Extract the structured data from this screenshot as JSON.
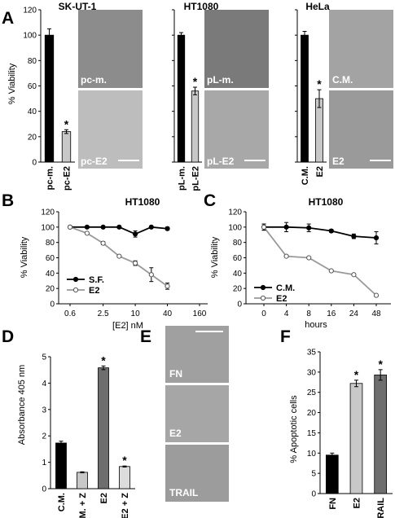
{
  "panel_labels": {
    "A": "A",
    "B": "B",
    "C": "C",
    "D": "D",
    "E": "E",
    "F": "F"
  },
  "panelA": {
    "y_axis_label": "% Viability",
    "y_ticks": [
      "0",
      "20",
      "40",
      "60",
      "80",
      "100",
      "120"
    ],
    "groups": [
      {
        "title": "SK-UT-1",
        "photo_top_label": "pc-m.",
        "photo_bottom_label": "pc-E2",
        "photo_top_tone": "#8c8c8c",
        "photo_bottom_tone": "#bdbdbd"
      },
      {
        "title": "HT1080",
        "photo_top_label": "pL-m.",
        "photo_bottom_label": "pL-E2",
        "photo_top_tone": "#7a7a7a",
        "photo_bottom_tone": "#a8a8a8"
      },
      {
        "title": "HeLa",
        "photo_top_label": "C.M.",
        "photo_bottom_label": "E2",
        "photo_top_tone": "#a3a3a3",
        "photo_bottom_tone": "#9a9a9a"
      }
    ]
  },
  "panelB": {
    "title": "HT1080",
    "legend": [
      "S.F.",
      "E2"
    ]
  },
  "panelC": {
    "title": "HT1080",
    "legend": [
      "C.M.",
      "E2"
    ]
  },
  "panelD": {
    "legend": []
  },
  "panelE": {
    "photo_labels": [
      "FN",
      "E2",
      "TRAIL"
    ],
    "photo_tones": [
      "#a0a0a0",
      "#a6a6a6",
      "#9c9c9c"
    ]
  },
  "panelF": {
    "legend": []
  },
  "colors": {
    "black": "#000000",
    "light_gray": "#c8c8c8",
    "dark_gray": "#6e6e6e",
    "line_gray": "#9a9a9a"
  },
  "chart_data": [
    {
      "type": "bar",
      "title": "SK-UT-1",
      "ylabel": "% Viability",
      "ylim": [
        0,
        120
      ],
      "categories": [
        "pc-m.",
        "pc-E2"
      ],
      "values": [
        100,
        24
      ],
      "errors": [
        5,
        1.5
      ],
      "significance": [
        "",
        "*"
      ],
      "colors": [
        "#000000",
        "#c8c8c8"
      ]
    },
    {
      "type": "bar",
      "title": "HT1080",
      "ylabel": "",
      "ylim": [
        0,
        120
      ],
      "categories": [
        "pL-m.",
        "pL-E2"
      ],
      "values": [
        100,
        56
      ],
      "errors": [
        2,
        3
      ],
      "significance": [
        "",
        "*"
      ],
      "colors": [
        "#000000",
        "#c8c8c8"
      ]
    },
    {
      "type": "bar",
      "title": "HeLa",
      "ylabel": "",
      "ylim": [
        0,
        120
      ],
      "categories": [
        "C.M.",
        "E2"
      ],
      "values": [
        100,
        50
      ],
      "errors": [
        3,
        7
      ],
      "significance": [
        "",
        "*"
      ],
      "colors": [
        "#000000",
        "#c8c8c8"
      ]
    },
    {
      "type": "line",
      "title": "HT1080",
      "xlabel": "[E2] nM",
      "ylabel": "% Viability",
      "xscale": "log2",
      "x": [
        0.6,
        1.25,
        2.5,
        5,
        10,
        20,
        40
      ],
      "xtick_labels": [
        "0.6",
        "2.5",
        "10",
        "40",
        "160"
      ],
      "xtick_values": [
        0.6,
        2.5,
        10,
        40,
        160
      ],
      "ylim": [
        0,
        120
      ],
      "yticks": [
        0,
        20,
        40,
        60,
        80,
        100,
        120
      ],
      "legend_position": "bottom-left",
      "series": [
        {
          "name": "S.F.",
          "marker": "filled-circle",
          "color": "#000000",
          "values": [
            100,
            100,
            100,
            100,
            91,
            100,
            98
          ],
          "errors": [
            0,
            0,
            0,
            0,
            4,
            0,
            2
          ]
        },
        {
          "name": "E2",
          "marker": "open-circle",
          "color": "#9a9a9a",
          "values": [
            100,
            92,
            79,
            62,
            53,
            38,
            23
          ],
          "errors": [
            0,
            0,
            2,
            0,
            3,
            9,
            4
          ]
        }
      ]
    },
    {
      "type": "line",
      "title": "HT1080",
      "xlabel": "hours",
      "ylabel": "% Viability",
      "xscale": "categorical",
      "x": [
        0,
        4,
        8,
        16,
        24,
        48
      ],
      "ylim": [
        0,
        120
      ],
      "yticks": [
        0,
        20,
        40,
        60,
        80,
        100,
        120
      ],
      "legend_position": "bottom-left",
      "series": [
        {
          "name": "C.M.",
          "marker": "filled-circle",
          "color": "#000000",
          "values": [
            100,
            100,
            99,
            95,
            88,
            86
          ],
          "errors": [
            4,
            6,
            5,
            2,
            3,
            8
          ]
        },
        {
          "name": "E2",
          "marker": "open-circle",
          "color": "#9a9a9a",
          "values": [
            100,
            62,
            60,
            43,
            38,
            11
          ],
          "errors": [
            4,
            1,
            1,
            1,
            1,
            1
          ]
        }
      ]
    },
    {
      "type": "bar",
      "title": "",
      "ylabel": "Absorbance 405 nm",
      "ylim": [
        0,
        5
      ],
      "yticks": [
        0,
        1,
        2,
        3,
        4,
        5
      ],
      "categories": [
        "C.M.",
        "C.M. + Z",
        "E2",
        "E2 + Z"
      ],
      "values": [
        1.73,
        0.62,
        4.58,
        0.84
      ],
      "errors": [
        0.07,
        0.02,
        0.07,
        0.02
      ],
      "significance": [
        "",
        "",
        "*",
        "*"
      ],
      "colors": [
        "#000000",
        "#c8c8c8",
        "#6e6e6e",
        "#dcdcdc"
      ]
    },
    {
      "type": "bar",
      "title": "",
      "ylabel": "% Apoptotic cells",
      "ylim": [
        0,
        35
      ],
      "yticks": [
        0,
        5,
        10,
        15,
        20,
        25,
        30,
        35
      ],
      "categories": [
        "FN",
        "E2",
        "TRAIL"
      ],
      "values": [
        9.5,
        27.2,
        29.3
      ],
      "errors": [
        0.5,
        0.8,
        1.3
      ],
      "significance": [
        "",
        "*",
        "*"
      ],
      "colors": [
        "#000000",
        "#c8c8c8",
        "#6e6e6e"
      ]
    }
  ]
}
